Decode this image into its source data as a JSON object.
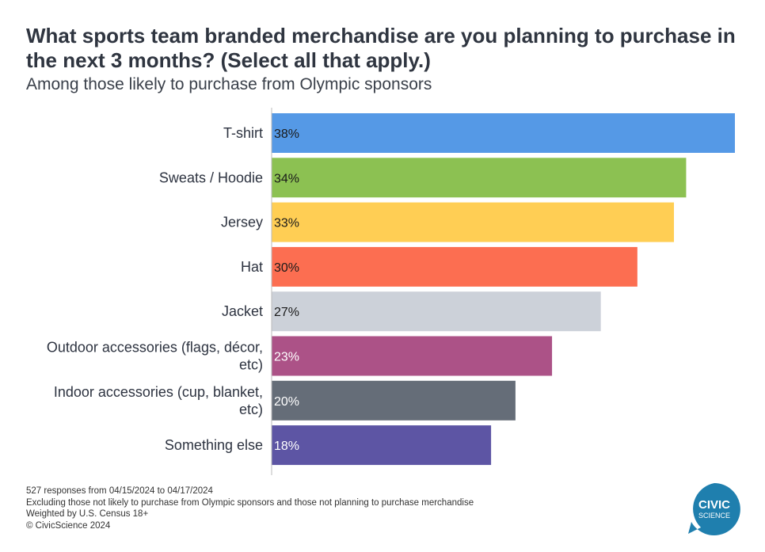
{
  "title": "What sports team branded merchandise are you planning to purchase in the next 3 months? (Select all that apply.)",
  "subtitle": "Among those likely to purchase from Olympic sponsors",
  "chart_data": {
    "type": "bar",
    "orientation": "horizontal",
    "categories": [
      "T-shirt",
      "Sweats / Hoodie",
      "Jersey",
      "Hat",
      "Jacket",
      "Outdoor accessories (flags, décor, etc)",
      "Indoor accessories (cup, blanket, etc)",
      "Something else"
    ],
    "category_lines": [
      [
        "T-shirt"
      ],
      [
        "Sweats / Hoodie"
      ],
      [
        "Jersey"
      ],
      [
        "Hat"
      ],
      [
        "Jacket"
      ],
      [
        "Outdoor accessories (flags, décor,",
        "etc)"
      ],
      [
        "Indoor accessories (cup, blanket,",
        "etc)"
      ],
      [
        "Something else"
      ]
    ],
    "values": [
      38,
      34,
      33,
      30,
      27,
      23,
      20,
      18
    ],
    "value_labels": [
      "38%",
      "34%",
      "33%",
      "30%",
      "27%",
      "23%",
      "20%",
      "18%"
    ],
    "colors": [
      "#5599e6",
      "#8cc152",
      "#ffce54",
      "#fc6e51",
      "#ccd1d9",
      "#ac5287",
      "#656d78",
      "#5d55a4"
    ],
    "label_colors": [
      "#1a1a1a",
      "#1a1a1a",
      "#1a1a1a",
      "#1a1a1a",
      "#1a1a1a",
      "#ffffff",
      "#ffffff",
      "#ffffff"
    ],
    "xlim": [
      0,
      38
    ],
    "grid": false,
    "legend": "none"
  },
  "footer": {
    "responses": "527 responses from 04/15/2024 to 04/17/2024",
    "excluding": "Excluding those not likely to purchase from Olympic sponsors and those not planning to purchase merchandise",
    "weighted": "Weighted by U.S. Census 18+",
    "copyright": "© CivicScience 2024"
  },
  "logo": {
    "line1": "CIVIC",
    "line2": "SCIENCE",
    "color": "#1f7fae"
  }
}
